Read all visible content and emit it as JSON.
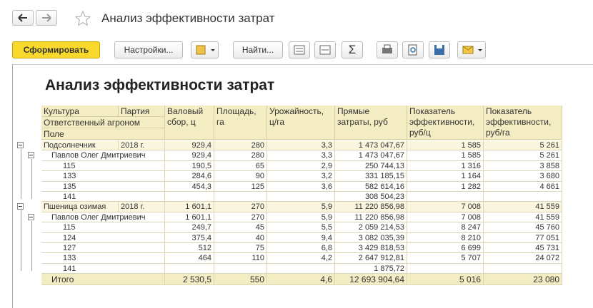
{
  "window": {
    "title": "Анализ эффективности затрат"
  },
  "toolbar": {
    "generate": "Сформировать",
    "settings": "Настройки...",
    "find": "Найти...",
    "sum": "Σ"
  },
  "report": {
    "title": "Анализ эффективности затрат",
    "header": {
      "culture": "Культура",
      "party": "Партия",
      "agronomist": "Ответственный агроном",
      "field": "Поле",
      "columns": [
        "Валовый сбор, ц",
        "Площадь, га",
        "Урожайность, ц/га",
        "Прямые затраты, руб",
        "Показатель эффективности, руб/ц",
        "Показатель эффективности, руб/га"
      ]
    },
    "groups": [
      {
        "cells": [
          "Подсолнечник",
          "2018 г.",
          "929,4",
          "280",
          "3,3",
          "1 473 047,67",
          "1 585",
          "5 261"
        ],
        "agronomists": [
          {
            "cells": [
              "Павлов Олег Дмитриевич",
              null,
              "929,4",
              "280",
              "3,3",
              "1 473 047,67",
              "1 585",
              "5 261"
            ],
            "fields": [
              [
                "115",
                null,
                "190,5",
                "65",
                "2,9",
                "250 744,13",
                "1 316",
                "3 858"
              ],
              [
                "133",
                null,
                "284,6",
                "90",
                "3,2",
                "331 185,15",
                "1 164",
                "3 680"
              ],
              [
                "135",
                null,
                "454,3",
                "125",
                "3,6",
                "582 614,16",
                "1 282",
                "4 661"
              ],
              [
                "141",
                null,
                null,
                null,
                null,
                "308 504,23",
                null,
                null
              ]
            ]
          }
        ]
      },
      {
        "cells": [
          "Пшеница озимая",
          "2018 г.",
          "1 601,1",
          "270",
          "5,9",
          "11 220 856,98",
          "7 008",
          "41 559"
        ],
        "agronomists": [
          {
            "cells": [
              "Павлов Олег Дмитриевич",
              null,
              "1 601,1",
              "270",
              "5,9",
              "11 220 856,98",
              "7 008",
              "41 559"
            ],
            "fields": [
              [
                "115",
                null,
                "249,7",
                "45",
                "5,5",
                "2 059 214,53",
                "8 247",
                "45 760"
              ],
              [
                "124",
                null,
                "375,4",
                "40",
                "9,4",
                "3 082 035,39",
                "8 210",
                "77 051"
              ],
              [
                "127",
                null,
                "512",
                "75",
                "6,8",
                "3 429 818,53",
                "6 699",
                "45 731"
              ],
              [
                "133",
                null,
                "464",
                "110",
                "4,2",
                "2 647 912,81",
                "5 707",
                "24 072"
              ],
              [
                "141",
                null,
                null,
                null,
                null,
                "1 875,72",
                null,
                null
              ]
            ]
          }
        ]
      }
    ],
    "total": [
      "Итого",
      null,
      "2 530,5",
      "550",
      "4,6",
      "12 693 904,64",
      "5 016",
      "23 080"
    ]
  }
}
